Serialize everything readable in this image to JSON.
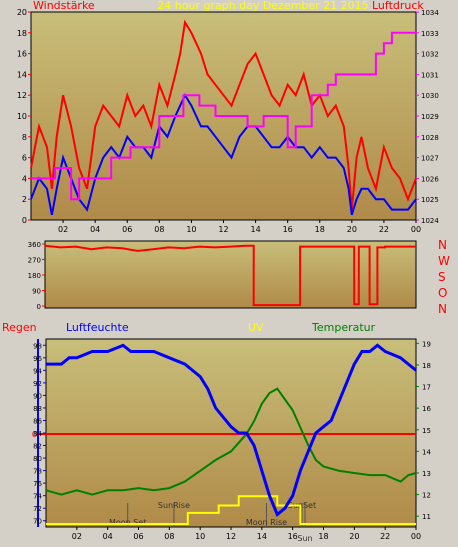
{
  "colors": {
    "window_bg": "#d4d0c8",
    "plot_top": "#c8be7a",
    "plot_bottom": "#b08a48",
    "wind_gust": "#ff0000",
    "wind_avg": "#0000ff",
    "pressure": "#ff00ff",
    "direction": "#ff0000",
    "humidity": "#0000ff",
    "temperature": "#008000",
    "rain": "#ff0000",
    "uv": "#ffff00",
    "title": "#ffff00",
    "axis_text": "#000000"
  },
  "chart_data": [
    {
      "id": "wind",
      "type": "line",
      "title": "24 hour graph day Dezember 21 2015",
      "left_label": "Windstärke",
      "right_label": "Luftdruck",
      "x_ticks": [
        "02",
        "04",
        "06",
        "08",
        "10",
        "12",
        "14",
        "16",
        "18",
        "20",
        "22",
        "00"
      ],
      "ylim": [
        0,
        20
      ],
      "y_ticks": [
        "0",
        "2",
        "4",
        "6",
        "8",
        "10",
        "12",
        "14",
        "16",
        "18",
        "20"
      ],
      "y2lim": [
        1024,
        1034
      ],
      "y2_ticks": [
        "1024",
        "1025",
        "1026",
        "1027",
        "1028",
        "1029",
        "1030",
        "1031",
        "1032",
        "1033",
        "1034"
      ],
      "series": [
        {
          "key": "gust",
          "axis": "left",
          "x": [
            0,
            0.5,
            1,
            1.3,
            1.6,
            2,
            2.5,
            3,
            3.5,
            4,
            4.5,
            5,
            5.5,
            6,
            6.5,
            7,
            7.5,
            8,
            8.5,
            9,
            9.3,
            9.6,
            10,
            10.3,
            10.6,
            11,
            11.5,
            12,
            12.5,
            13,
            13.5,
            14,
            14.5,
            15,
            15.5,
            16,
            16.5,
            17,
            17.5,
            18,
            18.5,
            19,
            19.5,
            19.8,
            20,
            20.3,
            20.6,
            21,
            21.5,
            22,
            22.5,
            23,
            23.5,
            24
          ],
          "y": [
            5,
            9,
            7,
            3,
            8,
            12,
            9,
            5,
            3,
            9,
            11,
            10,
            9,
            12,
            10,
            11,
            9,
            13,
            11,
            14,
            16,
            19,
            18,
            17,
            16,
            14,
            13,
            12,
            11,
            13,
            15,
            16,
            14,
            12,
            11,
            13,
            12,
            14,
            11,
            12,
            10,
            11,
            9,
            5,
            1,
            6,
            8,
            5,
            3,
            7,
            5,
            4,
            2,
            4
          ]
        },
        {
          "key": "average",
          "axis": "left",
          "x": [
            0,
            0.5,
            1,
            1.3,
            1.6,
            2,
            2.5,
            3,
            3.5,
            4,
            4.5,
            5,
            5.5,
            6,
            6.5,
            7,
            7.5,
            8,
            8.5,
            9,
            9.3,
            9.6,
            10,
            10.3,
            10.6,
            11,
            11.5,
            12,
            12.5,
            13,
            13.5,
            14,
            14.5,
            15,
            15.5,
            16,
            16.5,
            17,
            17.5,
            18,
            18.5,
            19,
            19.5,
            19.8,
            20,
            20.3,
            20.6,
            21,
            21.5,
            22,
            22.5,
            23,
            23.5,
            24
          ],
          "y": [
            2,
            4,
            3,
            0.5,
            3,
            6,
            4,
            2,
            1,
            4,
            6,
            7,
            6,
            8,
            7,
            7,
            6,
            9,
            8,
            10,
            11,
            12,
            11,
            10,
            9,
            9,
            8,
            7,
            6,
            8,
            9,
            9,
            8,
            7,
            7,
            8,
            7,
            7,
            6,
            7,
            6,
            6,
            5,
            3,
            0.5,
            2,
            3,
            3,
            2,
            2,
            1,
            1,
            1,
            2
          ]
        },
        {
          "key": "pressure",
          "axis": "right",
          "x": [
            0,
            1.5,
            1.5,
            2.5,
            2.5,
            3,
            3,
            5,
            5,
            6.2,
            6.2,
            8,
            8,
            9.5,
            9.5,
            10.5,
            10.5,
            11.5,
            11.5,
            13.5,
            13.5,
            14.5,
            14.5,
            16,
            16,
            16.5,
            16.5,
            17.5,
            17.5,
            18.5,
            18.5,
            19,
            19,
            21.5,
            21.5,
            22,
            22,
            22.5,
            22.5,
            24
          ],
          "y": [
            1026,
            1026,
            1026.5,
            1026.5,
            1025,
            1025,
            1026,
            1026,
            1027,
            1027,
            1027.5,
            1027.5,
            1029,
            1029,
            1030,
            1030,
            1029.5,
            1029.5,
            1029,
            1029,
            1028.5,
            1028.5,
            1029,
            1029,
            1027.5,
            1027.5,
            1028.5,
            1028.5,
            1030,
            1030,
            1030.5,
            1030.5,
            1031,
            1031,
            1032,
            1032,
            1032.5,
            1032.5,
            1033,
            1033
          ]
        }
      ]
    },
    {
      "id": "direction",
      "type": "line",
      "ylim": [
        0,
        360
      ],
      "y_ticks": [
        "0",
        "90",
        "180",
        "270",
        "360"
      ],
      "right_labels": [
        "N",
        "W",
        "S",
        "O",
        "N"
      ],
      "series": [
        {
          "key": "direction",
          "x": [
            0,
            1,
            2,
            3,
            4,
            5,
            6,
            7,
            8,
            9,
            10,
            11,
            12,
            13,
            13.5,
            13.5,
            16.5,
            16.5,
            20,
            20,
            20.3,
            20.3,
            21,
            21,
            21.5,
            21.5,
            22,
            22,
            24
          ],
          "y": [
            350,
            340,
            345,
            330,
            340,
            335,
            320,
            330,
            340,
            335,
            345,
            340,
            345,
            350,
            350,
            5,
            5,
            345,
            345,
            10,
            10,
            345,
            345,
            10,
            10,
            340,
            340,
            345,
            345
          ]
        }
      ]
    },
    {
      "id": "climate",
      "type": "line",
      "labels": {
        "rain": "Regen",
        "humidity": "Luftfeuchte",
        "uv": "UV",
        "temperature": "Temperatur"
      },
      "x_ticks": [
        "02",
        "04",
        "06",
        "08",
        "10",
        "12",
        "14",
        "16",
        "18",
        "20",
        "22",
        "00"
      ],
      "ylim": [
        69,
        99
      ],
      "y_ticks": [
        "70",
        "72",
        "74",
        "76",
        "78",
        "80",
        "82",
        "84",
        "86",
        "88",
        "90",
        "92",
        "94",
        "96",
        "98"
      ],
      "y2lim": [
        10.5,
        19.2
      ],
      "y2_ticks": [
        "11",
        "12",
        "13",
        "14",
        "15",
        "16",
        "17",
        "18",
        "19"
      ],
      "rain_tick": "0",
      "events": [
        {
          "label": "Moon Set",
          "x": 5.3
        },
        {
          "label": "SunRise",
          "x": 8.3
        },
        {
          "label": "Moon Rise",
          "x": 14.3
        },
        {
          "label": "SunSet",
          "x": 16.6
        },
        {
          "label": "Sun",
          "x": 16.8
        }
      ],
      "series": [
        {
          "key": "humidity",
          "axis": "left",
          "x": [
            0,
            1,
            1.5,
            2,
            3,
            4,
            5,
            5.5,
            6,
            7,
            8,
            9,
            10,
            10.5,
            11,
            12,
            12.5,
            13,
            13.5,
            14,
            14.5,
            15,
            15.5,
            16,
            16.5,
            17,
            17.5,
            18,
            18.5,
            19,
            19.5,
            20,
            20.5,
            21,
            21.5,
            22,
            23,
            23.5,
            24
          ],
          "y": [
            95,
            95,
            96,
            96,
            97,
            97,
            98,
            97,
            97,
            97,
            96,
            95,
            93,
            91,
            88,
            85,
            84,
            84,
            82,
            78,
            74,
            71,
            72,
            74,
            78,
            81,
            84,
            85,
            86,
            89,
            92,
            95,
            97,
            97,
            98,
            97,
            96,
            95,
            94
          ]
        },
        {
          "key": "temperature",
          "axis": "right",
          "x": [
            0,
            1,
            2,
            3,
            4,
            5,
            6,
            7,
            8,
            9,
            10,
            11,
            12,
            13,
            13.5,
            14,
            14.5,
            15,
            15.5,
            16,
            16.5,
            17,
            17.5,
            18,
            19,
            20,
            21,
            22,
            23,
            23.5,
            24
          ],
          "y": [
            12.2,
            12.0,
            12.2,
            12.0,
            12.2,
            12.2,
            12.3,
            12.2,
            12.3,
            12.6,
            13.1,
            13.6,
            14.0,
            14.8,
            15.4,
            16.2,
            16.7,
            16.9,
            16.4,
            15.9,
            15.1,
            14.3,
            13.6,
            13.3,
            13.1,
            13.0,
            12.9,
            12.9,
            12.6,
            12.9,
            13.0
          ]
        },
        {
          "key": "uv",
          "axis": "uv",
          "x": [
            0,
            9.2,
            9.2,
            11.2,
            11.2,
            12.5,
            12.5,
            15,
            15,
            16.5,
            16.5,
            24
          ],
          "y": [
            0,
            0,
            0.6,
            0.6,
            1,
            1,
            1.5,
            1.5,
            1,
            1,
            0,
            0
          ]
        }
      ]
    }
  ]
}
